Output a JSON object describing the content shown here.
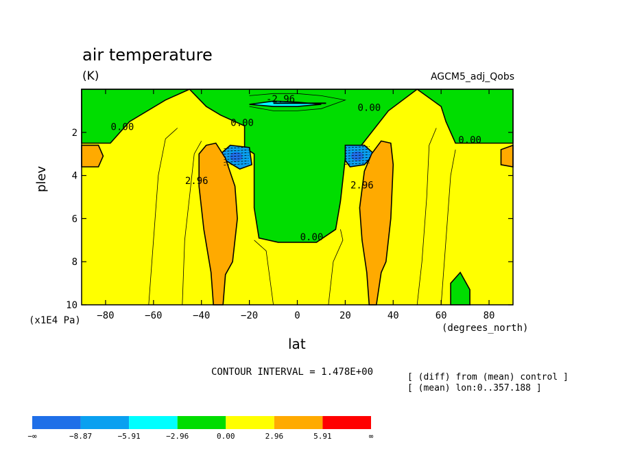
{
  "chart_data": {
    "type": "contour",
    "title": "air temperature",
    "units": "(K)",
    "run_label": "AGCM5_adj_Qobs",
    "xlabel": "lat",
    "ylabel": "plev",
    "x_unit": "(degrees_north)",
    "y_unit": "(x1E4 Pa)",
    "x_ticks": [
      -80,
      -60,
      -40,
      -20,
      0,
      20,
      40,
      60,
      80
    ],
    "x_tick_labels": [
      "−80",
      "−60",
      "−40",
      "−20",
      "0",
      "20",
      "40",
      "60",
      "80"
    ],
    "y_ticks": [
      2,
      4,
      6,
      8,
      10
    ],
    "xlim": [
      -90,
      90
    ],
    "ylim": [
      10,
      0
    ],
    "contour_interval_text": "CONTOUR INTERVAL = 1.478E+00",
    "notes": [
      "[ (diff) from (mean) control ]",
      "[ (mean) lon:0..357.188 ]"
    ],
    "contour_labels": [
      {
        "text": "-2.96",
        "lat": -7,
        "plev": 0.6
      },
      {
        "text": "0.00",
        "lat": -23,
        "plev": 1.7
      },
      {
        "text": "0.00",
        "lat": 30,
        "plev": 1.0
      },
      {
        "text": "0.00",
        "lat": -73,
        "plev": 1.9
      },
      {
        "text": "0.00",
        "lat": 72,
        "plev": 2.5
      },
      {
        "text": "0.00",
        "lat": 6,
        "plev": 7.0
      },
      {
        "text": "2.96",
        "lat": -42,
        "plev": 4.4
      },
      {
        "text": "2.96",
        "lat": 27,
        "plev": 4.6
      }
    ],
    "colorbar": {
      "boundaries": [
        "−∞",
        "−8.87",
        "−5.91",
        "−2.96",
        "0.00",
        "2.96",
        "5.91",
        "∞"
      ],
      "colors": [
        "#1f6fe8",
        "#0aa0f0",
        "#00ffff",
        "#00dd00",
        "#ffff00",
        "#ffaa00",
        "#ff0000"
      ]
    },
    "background_fill_color": "#ffff00",
    "regions": [
      {
        "name": "upper-green",
        "level": "-2.96..0",
        "color": "#00dd00",
        "polygon": [
          [
            -90,
            0
          ],
          [
            -90,
            2.5
          ],
          [
            -78,
            2.5
          ],
          [
            -70,
            1.5
          ],
          [
            -55,
            0.5
          ],
          [
            -45,
            0
          ],
          [
            -38,
            0.8
          ],
          [
            -32,
            1.2
          ],
          [
            -22,
            1.7
          ],
          [
            -22,
            2.7
          ],
          [
            -18,
            3.0
          ],
          [
            -18,
            5.5
          ],
          [
            -16,
            6.9
          ],
          [
            -8,
            7.1
          ],
          [
            8,
            7.1
          ],
          [
            16,
            6.5
          ],
          [
            18,
            5.2
          ],
          [
            20,
            3.2
          ],
          [
            26,
            2.7
          ],
          [
            38,
            1.0
          ],
          [
            50,
            0
          ],
          [
            60,
            0.8
          ],
          [
            62,
            1.5
          ],
          [
            66,
            2.5
          ],
          [
            90,
            2.5
          ],
          [
            90,
            0
          ]
        ]
      },
      {
        "name": "tropopause-core",
        "level": "-5.91..-2.96",
        "color": "#00ffff",
        "polygon": [
          [
            -20,
            0.7
          ],
          [
            -10,
            0.55
          ],
          [
            0,
            0.6
          ],
          [
            10,
            0.7
          ],
          [
            0,
            0.8
          ],
          [
            -10,
            0.8
          ]
        ]
      },
      {
        "name": "left-blue-blob",
        "level": "<-5.91",
        "color": "#0aa0f0",
        "polygon": [
          [
            -32,
            3.0
          ],
          [
            -28,
            2.6
          ],
          [
            -20,
            2.7
          ],
          [
            -19,
            3.5
          ],
          [
            -24,
            3.7
          ],
          [
            -30,
            3.3
          ]
        ]
      },
      {
        "name": "right-blue-blob",
        "level": "<-5.91",
        "color": "#0aa0f0",
        "polygon": [
          [
            20,
            2.6
          ],
          [
            28,
            2.6
          ],
          [
            32,
            3.0
          ],
          [
            28,
            3.5
          ],
          [
            22,
            3.6
          ],
          [
            20,
            3.3
          ]
        ]
      },
      {
        "name": "left-orange-band",
        "level": "2.96..5.91",
        "color": "#ffaa00",
        "polygon": [
          [
            -38,
            2.6
          ],
          [
            -34,
            2.5
          ],
          [
            -30,
            3.2
          ],
          [
            -26,
            4.5
          ],
          [
            -25,
            6.0
          ],
          [
            -27,
            8.0
          ],
          [
            -30,
            8.6
          ],
          [
            -31,
            10
          ],
          [
            -35,
            10
          ],
          [
            -36,
            8.5
          ],
          [
            -39,
            6.5
          ],
          [
            -41,
            4.5
          ],
          [
            -41,
            3.0
          ]
        ]
      },
      {
        "name": "right-orange-band",
        "level": "2.96..5.91",
        "color": "#ffaa00",
        "polygon": [
          [
            35,
            2.4
          ],
          [
            39,
            2.5
          ],
          [
            40,
            3.5
          ],
          [
            39,
            6.0
          ],
          [
            37,
            8.0
          ],
          [
            35,
            8.5
          ],
          [
            33,
            10
          ],
          [
            30,
            10
          ],
          [
            29,
            8.5
          ],
          [
            27,
            7.0
          ],
          [
            26,
            5.5
          ],
          [
            28,
            3.8
          ],
          [
            31,
            3.0
          ]
        ]
      },
      {
        "name": "left-edge-orange",
        "level": "2.96..5.91",
        "color": "#ffaa00",
        "polygon": [
          [
            -90,
            2.6
          ],
          [
            -83,
            2.6
          ],
          [
            -81,
            3.1
          ],
          [
            -83,
            3.6
          ],
          [
            -90,
            3.6
          ]
        ]
      },
      {
        "name": "right-edge-orange",
        "level": "2.96..5.91",
        "color": "#ffaa00",
        "polygon": [
          [
            90,
            2.6
          ],
          [
            85,
            2.8
          ],
          [
            85,
            3.5
          ],
          [
            90,
            3.6
          ]
        ]
      },
      {
        "name": "surface-green",
        "level": "-2.96..0",
        "color": "#00dd00",
        "polygon": [
          [
            64,
            10
          ],
          [
            64,
            9.0
          ],
          [
            68,
            8.5
          ],
          [
            72,
            9.3
          ],
          [
            72,
            10
          ]
        ]
      }
    ],
    "thin_contours": [
      [
        [
          -62,
          10
        ],
        [
          -60,
          7
        ],
        [
          -58,
          4
        ],
        [
          -55,
          2.3
        ],
        [
          -50,
          1.8
        ]
      ],
      [
        [
          -48,
          10
        ],
        [
          -47,
          7
        ],
        [
          -45,
          5
        ],
        [
          -43,
          3
        ],
        [
          -40,
          2.4
        ]
      ],
      [
        [
          -10,
          10
        ],
        [
          -13,
          7.5
        ],
        [
          -18,
          7.0
        ]
      ],
      [
        [
          50,
          10
        ],
        [
          52,
          8.0
        ],
        [
          54,
          5.0
        ],
        [
          55,
          2.6
        ],
        [
          58,
          1.8
        ]
      ],
      [
        [
          60,
          10
        ],
        [
          62,
          7
        ],
        [
          64,
          4
        ],
        [
          66,
          2.8
        ]
      ],
      [
        [
          13,
          10
        ],
        [
          15,
          8.0
        ],
        [
          19,
          7.0
        ],
        [
          18,
          6.5
        ]
      ],
      [
        [
          -20,
          0.3
        ],
        [
          -10,
          0.2
        ],
        [
          0,
          0.2
        ],
        [
          10,
          0.3
        ],
        [
          20,
          0.5
        ],
        [
          10,
          0.9
        ],
        [
          0,
          1.0
        ],
        [
          -10,
          1.0
        ],
        [
          -20,
          0.8
        ]
      ]
    ]
  }
}
